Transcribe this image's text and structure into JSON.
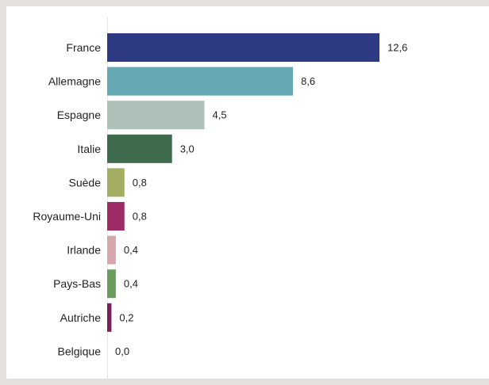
{
  "chart_data": {
    "type": "bar",
    "orientation": "horizontal",
    "categories": [
      "France",
      "Allemagne",
      "Espagne",
      "Italie",
      "Suède",
      "Royaume-Uni",
      "Irlande",
      "Pays-Bas",
      "Autriche",
      "Belgique"
    ],
    "values": [
      12.6,
      8.6,
      4.5,
      3.0,
      0.8,
      0.8,
      0.4,
      0.4,
      0.2,
      0.0
    ],
    "value_labels": [
      "12,6",
      "8,6",
      "4,5",
      "3,0",
      "0,8",
      "0,8",
      "0,4",
      "0,4",
      "0,2",
      "0,0"
    ],
    "colors": [
      "#2f3a84",
      "#66a9b5",
      "#adc1b8",
      "#3d6b4c",
      "#a3ae63",
      "#9c2b66",
      "#d6a7aa",
      "#6a9d5d",
      "#7b1f58",
      "#7b1f58"
    ],
    "xlim": [
      0,
      12.6
    ],
    "grid": false,
    "legend": "none"
  }
}
